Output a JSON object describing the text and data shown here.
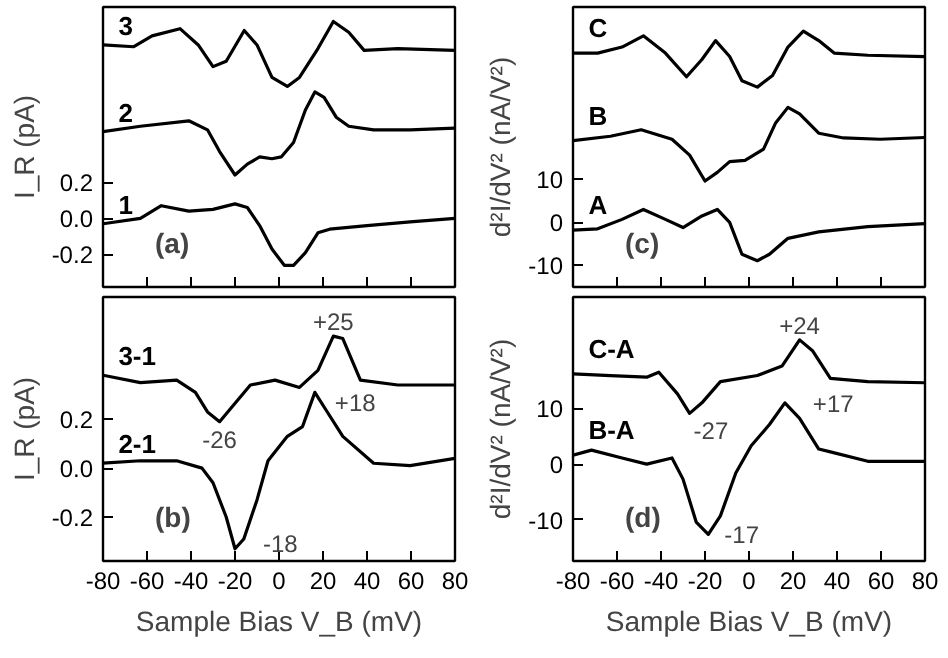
{
  "chart_data": [
    {
      "type": "line",
      "ylabel": "I_R (pA)",
      "annotations": [
        "(a)"
      ],
      "xlim": [
        -80,
        80
      ],
      "ylim": [
        -0.38,
        1.17
      ],
      "xticks": [
        -80,
        -60,
        -40,
        -20,
        0,
        20,
        40,
        60,
        80
      ],
      "yticks": [
        -0.2,
        {
          "value": 0,
          "label": "0.0"
        },
        0.2
      ],
      "tick_labels": "y",
      "series": [
        {
          "name": "3",
          "color": "#000000",
          "x": [
            -80,
            -66,
            -57.7,
            -45,
            -36.7,
            -30,
            -24,
            -15.8,
            -10,
            -3.2,
            3.8,
            9.3,
            17.7,
            24.7,
            31.7,
            38.7,
            54,
            80
          ],
          "values": [
            0.96,
            0.95,
            1.01,
            1.05,
            0.96,
            0.84,
            0.87,
            1.04,
            0.96,
            0.78,
            0.73,
            0.78,
            0.94,
            1.09,
            1.03,
            0.93,
            0.94,
            0.93
          ]
        },
        {
          "name": "2",
          "color": "#000000",
          "x": [
            -80,
            -63,
            -41,
            -32.5,
            -27,
            -20,
            -14.4,
            -8.8,
            -3.2,
            1,
            6.6,
            12,
            16.3,
            20.5,
            26,
            31.7,
            43,
            59.6,
            80
          ],
          "values": [
            0.48,
            0.51,
            0.54,
            0.49,
            0.37,
            0.24,
            0.3,
            0.34,
            0.33,
            0.34,
            0.42,
            0.6,
            0.7,
            0.67,
            0.56,
            0.51,
            0.49,
            0.49,
            0.5
          ]
        },
        {
          "name": "1",
          "color": "#000000",
          "x": [
            -80,
            -63,
            -53.5,
            -41,
            -30,
            -20,
            -14.4,
            -8.8,
            -3.2,
            2.4,
            6.6,
            12,
            17.7,
            23,
            40,
            59.6,
            80
          ],
          "values": [
            -0.03,
            0.0,
            0.07,
            0.04,
            0.05,
            0.08,
            0.06,
            -0.04,
            -0.17,
            -0.26,
            -0.26,
            -0.19,
            -0.08,
            -0.06,
            -0.04,
            -0.02,
            0.0
          ]
        }
      ]
    },
    {
      "type": "line",
      "ylabel": "d²I/dV² (nA/V²)",
      "annotations": [
        "(c)"
      ],
      "xlim": [
        -80,
        80
      ],
      "ylim": [
        -15,
        50
      ],
      "xticks": [
        -80,
        -60,
        -40,
        -20,
        0,
        20,
        40,
        60,
        80
      ],
      "yticks": [
        -10,
        0,
        10
      ],
      "tick_labels": "y",
      "series": [
        {
          "name": "C",
          "color": "#000000",
          "x": [
            -80,
            -68.8,
            -57.7,
            -48,
            -38,
            -28.4,
            -21.4,
            -15.2,
            -8.8,
            -3.2,
            3.8,
            10.7,
            17.7,
            24.7,
            31.7,
            38.7,
            54,
            80
          ],
          "values": [
            39.3,
            39.3,
            40.7,
            43.3,
            39.3,
            33.8,
            37.8,
            42.2,
            38.5,
            32.9,
            31.4,
            34.1,
            40.7,
            44.4,
            42.2,
            39.3,
            38.8,
            38.5
          ]
        },
        {
          "name": "B",
          "color": "#000000",
          "x": [
            -80,
            -63,
            -49,
            -35,
            -27,
            -20,
            -14.4,
            -8.8,
            -1.8,
            6.6,
            12,
            17.7,
            23,
            31.7,
            43,
            59.6,
            80
          ],
          "values": [
            19.0,
            20.0,
            21.5,
            19.3,
            15.6,
            9.6,
            11.6,
            14.1,
            14.4,
            17.0,
            23.0,
            26.7,
            25.2,
            20.7,
            19.6,
            19.3,
            19.7
          ]
        },
        {
          "name": "A",
          "color": "#000000",
          "x": [
            -80,
            -68.8,
            -57.7,
            -48,
            -38,
            -30,
            -21.4,
            -14.4,
            -8.8,
            -3.2,
            3.8,
            9.3,
            17.7,
            31.7,
            54,
            80
          ],
          "values": [
            -1.8,
            -1.5,
            0.7,
            3.0,
            0.7,
            -1.2,
            1.5,
            3.0,
            0,
            -7.4,
            -8.9,
            -7.4,
            -3.7,
            -2.2,
            -1.0,
            -0.3
          ]
        }
      ]
    },
    {
      "type": "line",
      "xlabel": "Sample Bias V_B (mV)",
      "ylabel": "I_R (pA)",
      "annotations": [
        "(b)",
        {
          "text": "+25",
          "x": 24.7,
          "y": 0.54
        },
        {
          "text": "-26",
          "x": -27,
          "y": 0.19
        },
        {
          "text": "+18",
          "x": 16.3,
          "y": 0.31
        },
        {
          "text": "-18",
          "x": -20,
          "y": -0.33
        }
      ],
      "xlim": [
        -80,
        80
      ],
      "ylim": [
        -0.38,
        0.7
      ],
      "xticks": [
        -80,
        -60,
        -40,
        -20,
        0,
        20,
        40,
        60,
        80
      ],
      "yticks": [
        -0.2,
        {
          "value": 0,
          "label": "0.0"
        },
        0.2
      ],
      "series": [
        {
          "name": "3-1",
          "color": "#000000",
          "x": [
            -80,
            -63,
            -46.5,
            -38,
            -32.5,
            -27,
            -21.4,
            -13,
            -1.8,
            9.3,
            17.7,
            24.7,
            29,
            37,
            54,
            80
          ],
          "values": [
            0.38,
            0.35,
            0.36,
            0.31,
            0.23,
            0.19,
            0.25,
            0.34,
            0.36,
            0.33,
            0.4,
            0.54,
            0.53,
            0.36,
            0.34,
            0.34
          ]
        },
        {
          "name": "2-1",
          "color": "#000000",
          "x": [
            -80,
            -63,
            -46.5,
            -35,
            -30,
            -24,
            -20,
            -16,
            -10,
            -5,
            3.8,
            10.7,
            16.3,
            20.5,
            29,
            43,
            59.6,
            80
          ],
          "values": [
            0.02,
            0.03,
            0.03,
            0.0,
            -0.06,
            -0.2,
            -0.33,
            -0.29,
            -0.13,
            0.03,
            0.13,
            0.17,
            0.31,
            0.25,
            0.13,
            0.02,
            0.01,
            0.04
          ]
        }
      ]
    },
    {
      "type": "line",
      "xlabel": "Sample Bias V_B (mV)",
      "ylabel": "d²I/dV² (nA/V²)",
      "annotations": [
        "(d)",
        {
          "text": "+24",
          "x": 23,
          "y": 22.3
        },
        {
          "text": "-27",
          "x": -27,
          "y": 9.1
        },
        {
          "text": "+17",
          "x": 16.3,
          "y": 11.0
        },
        {
          "text": "-17",
          "x": -18.5,
          "y": -12.6
        }
      ],
      "xlim": [
        -80,
        80
      ],
      "ylim": [
        -17.4,
        30
      ],
      "xticks": [
        -80,
        -60,
        -40,
        -20,
        0,
        20,
        40,
        60,
        80
      ],
      "yticks": [
        -10,
        0,
        10
      ],
      "series": [
        {
          "name": "C-A",
          "color": "#000000",
          "x": [
            -80,
            -63,
            -46.5,
            -41,
            -32.5,
            -27,
            -21.4,
            -13,
            3.8,
            15,
            23,
            29,
            37,
            54,
            80
          ],
          "values": [
            16.2,
            15.9,
            15.6,
            16.5,
            12.6,
            9.1,
            11.0,
            14.8,
            15.9,
            17.6,
            22.3,
            20.3,
            15.4,
            14.8,
            14.6
          ]
        },
        {
          "name": "B-A",
          "color": "#000000",
          "x": [
            -80,
            -71.6,
            -57.7,
            -46.5,
            -35,
            -30,
            -24,
            -18.5,
            -13,
            -6,
            1,
            9.3,
            16.3,
            23,
            31.7,
            37,
            54,
            80
          ],
          "values": [
            1.6,
            2.5,
            1.1,
            0,
            1.1,
            -2.7,
            -10.4,
            -12.6,
            -9.3,
            -1.6,
            3.3,
            7.1,
            11.0,
            8.2,
            2.7,
            2.2,
            0.5,
            0.5
          ]
        }
      ]
    }
  ]
}
